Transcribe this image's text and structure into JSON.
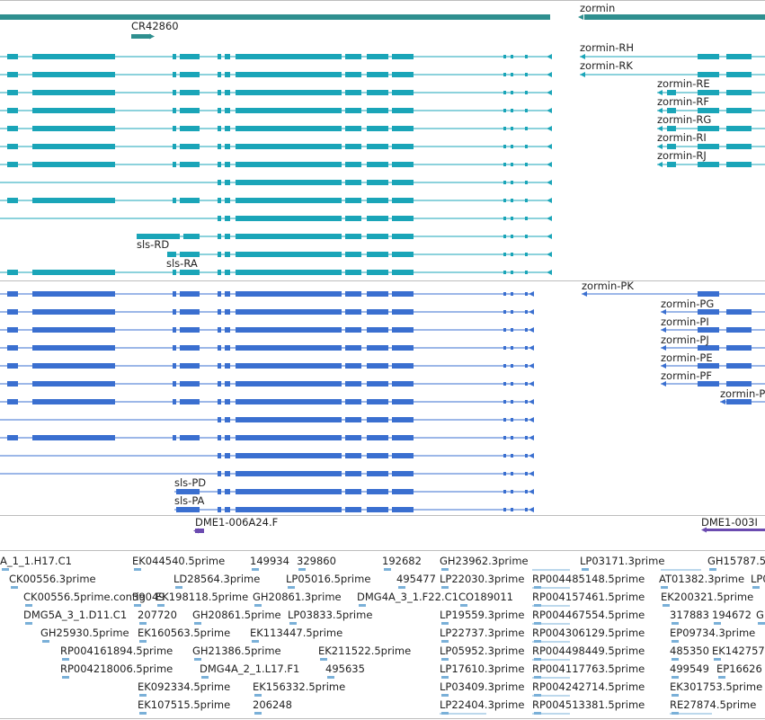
{
  "colors": {
    "gene": "#2f8f8f",
    "transcript_top": "#1aa5b8",
    "transcript_bottom": "#3a6fd0",
    "primer": "#6b4bb0",
    "est": "#7ab0d8",
    "separator": "#bdbdbd"
  },
  "gene_track": {
    "genes": [
      {
        "id": "gene-cr42860",
        "label": "CR42860"
      },
      {
        "id": "gene-zormin",
        "label": "zormin"
      }
    ]
  },
  "transcripts_top": {
    "labels": {
      "sls_rd": "sls-RD",
      "sls_ra": "sls-RA",
      "zormin_rh": "zormin-RH",
      "zormin_rk": "zormin-RK",
      "zormin_re": "zormin-RE",
      "zormin_rf": "zormin-RF",
      "zormin_rg": "zormin-RG",
      "zormin_ri": "zormin-RI",
      "zormin_rj": "zormin-RJ"
    }
  },
  "transcripts_bottom": {
    "labels": {
      "sls_pd": "sls-PD",
      "sls_pa": "sls-PA",
      "zormin_pk": "zormin-PK",
      "zormin_pg": "zormin-PG",
      "zormin_pi": "zormin-PI",
      "zormin_pj": "zormin-PJ",
      "zormin_pe": "zormin-PE",
      "zormin_pf": "zormin-PF",
      "zormin_p": "zormin-P"
    }
  },
  "primers": {
    "p1": "DME1-006A24.F",
    "p2": "DME1-003I"
  },
  "ests": [
    "A_1_1.H17.C1",
    "EK044540.5prime",
    "149934",
    "329860",
    "192682",
    "GH23962.3prime",
    "LP03171.3prime",
    "GH15787.5",
    "CK00556.3prime",
    "39049",
    "LD28564.3prime",
    "LP05016.5prime",
    "495477",
    "LP22030.3prime",
    "RP004485148.5prime",
    "AT01382.3prime",
    "LP0",
    "CK00556.5prime.contig",
    "EK198118.5prime",
    "GH20861.3prime",
    "DMG4A_3_1.F22.C1",
    "CO189011",
    "RP004157461.5prime",
    "EK200321.5prime",
    "DMG5A_3_1.D11.C1",
    "207720",
    "GH20861.5prime",
    "LP03833.5prime",
    "LP19559.3prime",
    "RP004467554.5prime",
    "317883",
    "194672",
    "G",
    "GH25930.5prime",
    "EK160563.5prime",
    "EK113447.5prime",
    "LP22737.3prime",
    "RP004306129.5prime",
    "EP09734.3prime",
    "RP004161894.5prime",
    "GH21386.5prime",
    "EK211522.5prime",
    "LP05952.3prime",
    "RP004498449.5prime",
    "485350",
    "EK142757",
    "RP004218006.5prime",
    "DMG4A_2_1.L17.F1",
    "495635",
    "LP17610.3prime",
    "RP004117763.5prime",
    "499549",
    "EP16626",
    "EK092334.5prime",
    "EK156332.5prime",
    "LP03409.3prime",
    "RP004242714.5prime",
    "EK301753.5prime",
    "EK107515.5prime",
    "206248",
    "LP22404.3prime",
    "RP004513381.5prime",
    "RE27874.5prime"
  ]
}
